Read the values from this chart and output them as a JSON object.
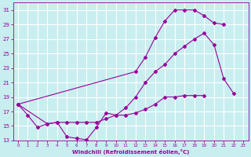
{
  "xlabel": "Windchill (Refroidissement éolien,°C)",
  "xlim": [
    -0.5,
    23.5
  ],
  "ylim": [
    13,
    32
  ],
  "yticks": [
    13,
    15,
    17,
    19,
    21,
    23,
    25,
    27,
    29,
    31
  ],
  "xticks": [
    0,
    1,
    2,
    3,
    4,
    5,
    6,
    7,
    8,
    9,
    10,
    11,
    12,
    13,
    14,
    15,
    16,
    17,
    18,
    19,
    20,
    21,
    22,
    23
  ],
  "bg_color": "#c8eef0",
  "grid_color": "#aadddd",
  "line_color": "#990099",
  "series": [
    {
      "x": [
        0,
        1,
        2,
        3,
        4,
        5,
        6,
        7,
        8,
        9,
        10,
        11,
        12,
        13,
        14,
        15,
        16,
        17,
        18,
        19
      ],
      "y": [
        18.0,
        16.5,
        14.8,
        15.3,
        15.5,
        13.5,
        13.3,
        13.1,
        14.8,
        16.8,
        16.5,
        16.5,
        16.8,
        17.3,
        18.0,
        19.0,
        19.0,
        19.2,
        19.2,
        19.2
      ]
    },
    {
      "x": [
        0,
        3,
        4,
        5,
        6,
        7,
        8,
        9,
        10,
        11,
        12,
        13,
        14,
        15,
        16,
        17,
        18,
        19,
        20,
        21,
        22
      ],
      "y": [
        18.0,
        15.3,
        15.5,
        15.5,
        15.5,
        15.5,
        15.5,
        16.0,
        16.5,
        17.5,
        19.0,
        21.0,
        22.5,
        23.5,
        25.0,
        26.0,
        27.0,
        27.8,
        26.2,
        21.5,
        19.5
      ]
    },
    {
      "x": [
        0,
        12,
        13,
        14,
        15,
        16,
        17,
        18,
        19,
        20,
        21
      ],
      "y": [
        18.0,
        22.5,
        24.5,
        27.2,
        29.5,
        31.0,
        31.0,
        31.0,
        30.2,
        29.2,
        29.0
      ]
    }
  ]
}
